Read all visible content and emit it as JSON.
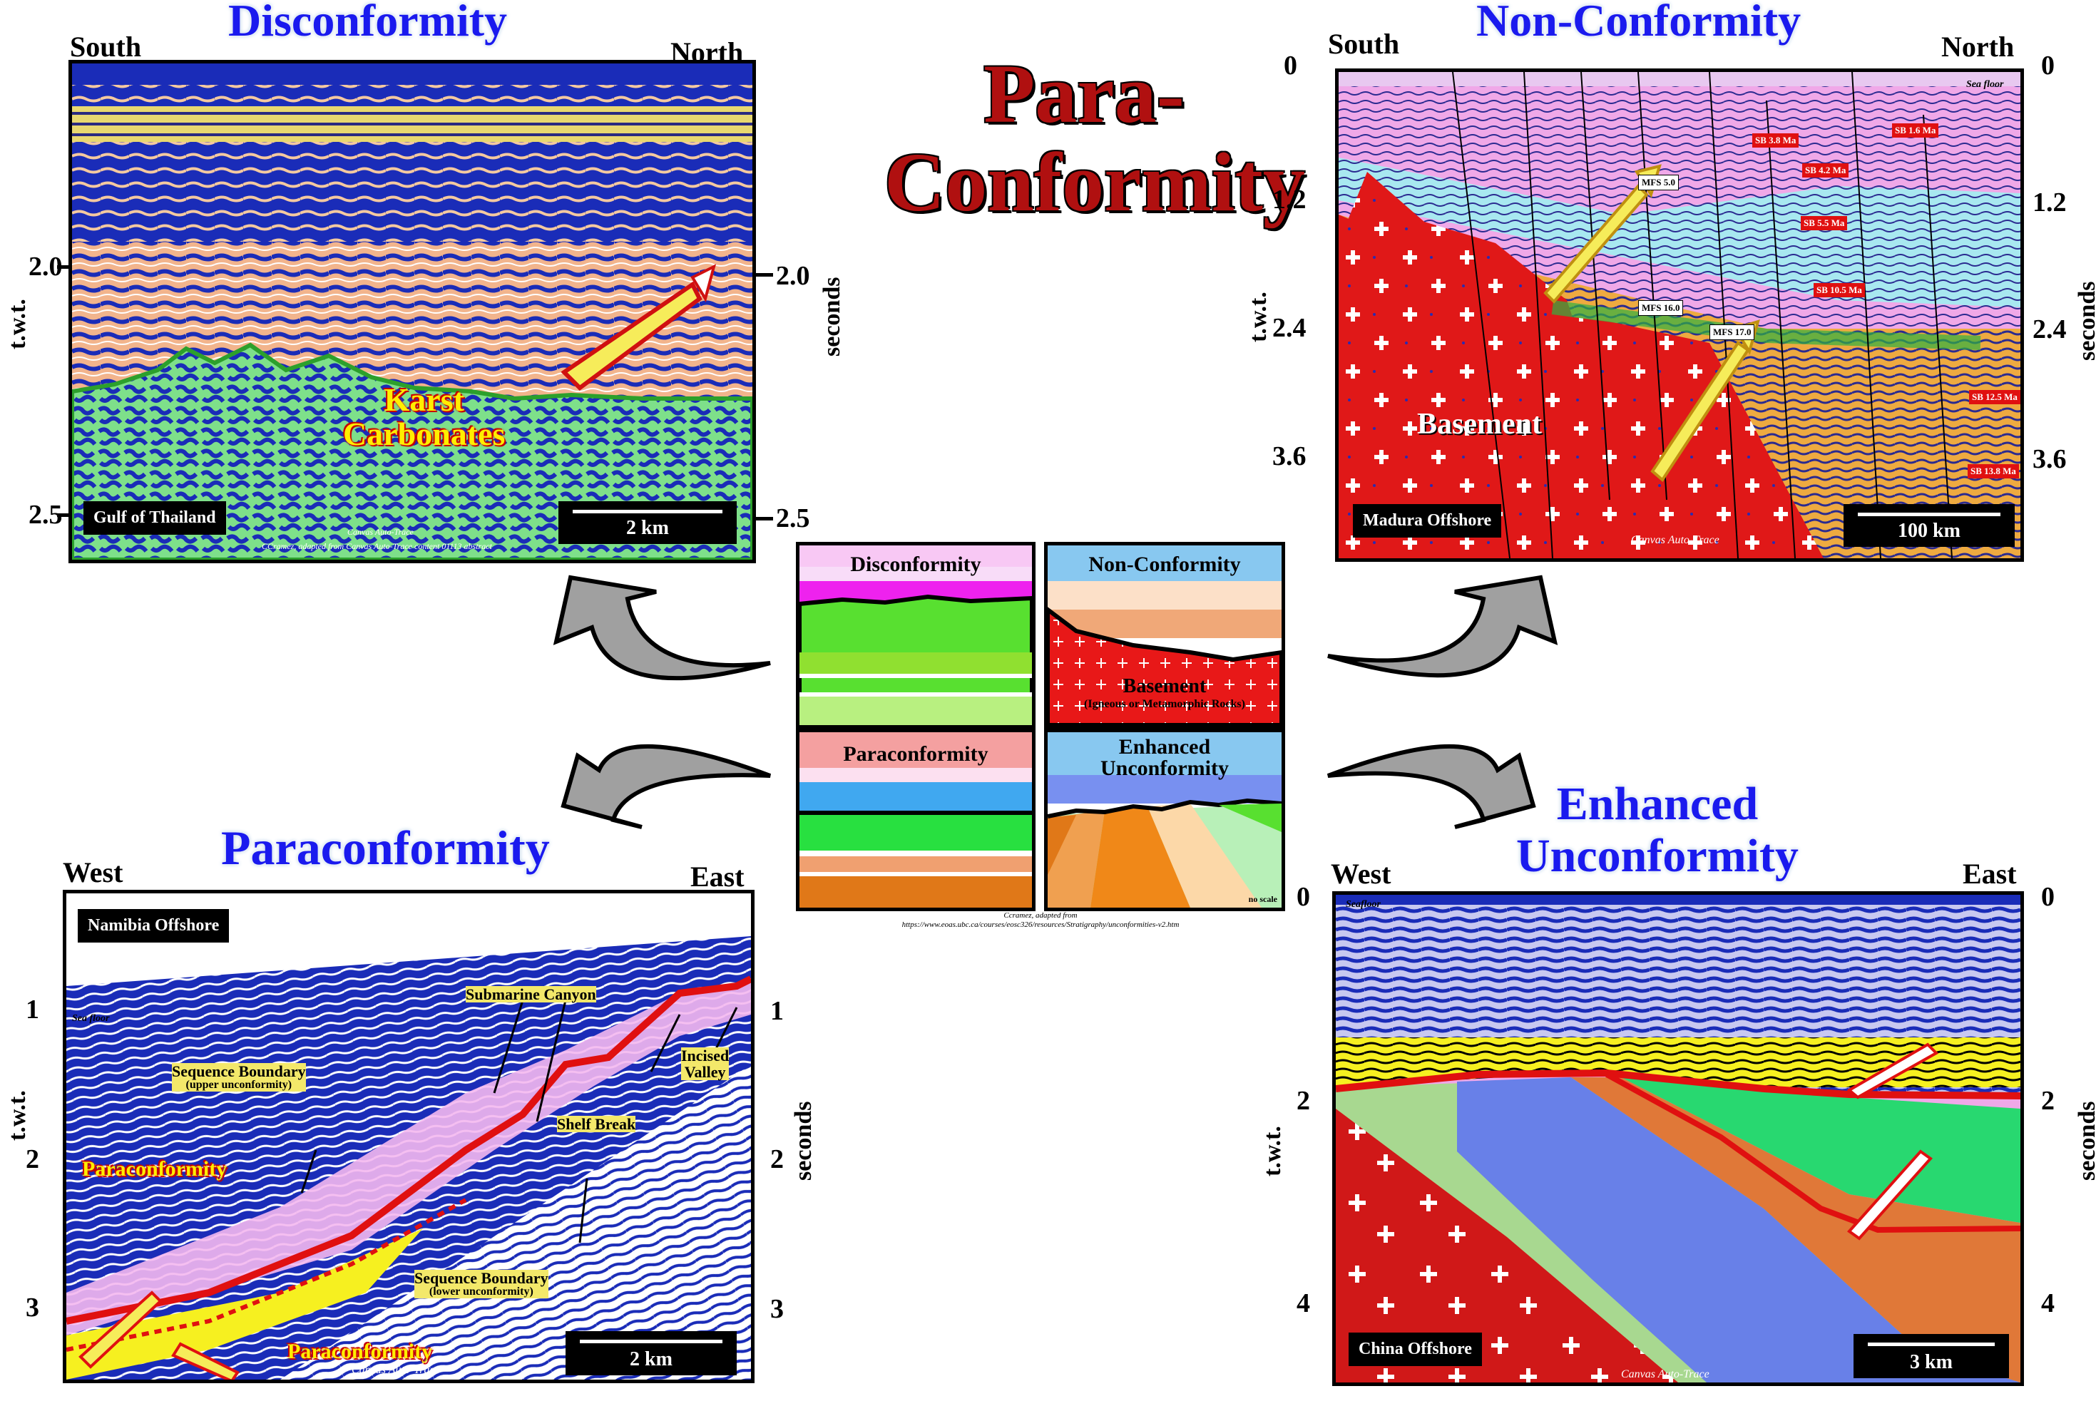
{
  "main_title_line1": "Para-",
  "main_title_line2": "Conformity",
  "tl": {
    "title": "Disconformity",
    "left_dir": "South",
    "right_dir": "North",
    "left_axis": "t.w.t.",
    "right_axis": "seconds",
    "ticks": [
      "2.0",
      "2.5"
    ],
    "location": "Gulf of Thailand",
    "scale": "2 km",
    "label_line1": "Karst",
    "label_line2": "Carbonates",
    "credit1": "Canvas Auto-Trace",
    "credit2": "CCramez, adapted from Canvas Auto-Trace content 01113 abstract"
  },
  "tr": {
    "title": "Non-Conformity",
    "left_dir": "South",
    "right_dir": "North",
    "left_axis": "t.w.t.",
    "right_axis": "seconds",
    "ticks": [
      "0",
      "1.2",
      "2.4",
      "3.6"
    ],
    "location": "Madura Offshore",
    "scale": "100 km",
    "label": "Basement",
    "sea_floor": "Sea floor",
    "sb_tags": [
      "SB 3.8 Ma",
      "SB 1.6 Ma",
      "SB 4.2 Ma",
      "SB 5.5 Ma",
      "SB 10.5 Ma",
      "SB 12.5 Ma",
      "SB 13.8 Ma"
    ],
    "mfs_tags": [
      "MFS 5.0",
      "MFS 16.0",
      "MFS 17.0"
    ],
    "credit": "Canvas Auto-Trace"
  },
  "bl": {
    "title": "Paraconformity",
    "left_dir": "West",
    "right_dir": "East",
    "left_axis": "t.w.t.",
    "right_axis": "seconds",
    "ticks": [
      "1",
      "2",
      "3"
    ],
    "location": "Namibia Offshore",
    "scale": "2 km",
    "sea_floor": "Sea floor",
    "paraconformity_label": "Paraconformity",
    "submarine_canyon": "Submarine Canyon",
    "sb_upper_line1": "Sequence Boundary",
    "sb_upper_line2": "(upper unconformity)",
    "sb_lower_line1": "Sequence Boundary",
    "sb_lower_line2": "(lower unconformity)",
    "shelf_break": "Shelf Break",
    "incised_line1": "Incised",
    "incised_line2": "Valley",
    "credit": "Canvas Auto-Trace"
  },
  "br": {
    "title_line1": "Enhanced",
    "title_line2": "Unconformity",
    "left_dir": "West",
    "right_dir": "East",
    "left_axis": "t.w.t.",
    "right_axis": "seconds",
    "ticks": [
      "0",
      "2",
      "4"
    ],
    "location": "China Offshore",
    "scale": "3 km",
    "sea_floor": "Seafloor",
    "credit": "Canvas Auto-Trace"
  },
  "center": {
    "disconformity": "Disconformity",
    "nonconformity": "Non-Conformity",
    "basement": "Basement",
    "basement_sub": "(Igneous or Metamorphic Rocks)",
    "paraconformity": "Paraconformity",
    "enhanced_line1": "Enhanced",
    "enhanced_line2": "Unconformity",
    "no_scale": "no scale",
    "credit_line1": "Ccramez, adapted from",
    "credit_line2": "https://www.eoas.ubc.ca/courses/eosc326/resources/Stratigraphy/unconformities-v2.htm"
  },
  "colors": {
    "title_blue": "#1a1aee",
    "main_title_red": "#b01010",
    "seismic_blue": "#1a2cb8",
    "carbonate_green": "#7ee08a",
    "basement_red": "#e01818"
  }
}
